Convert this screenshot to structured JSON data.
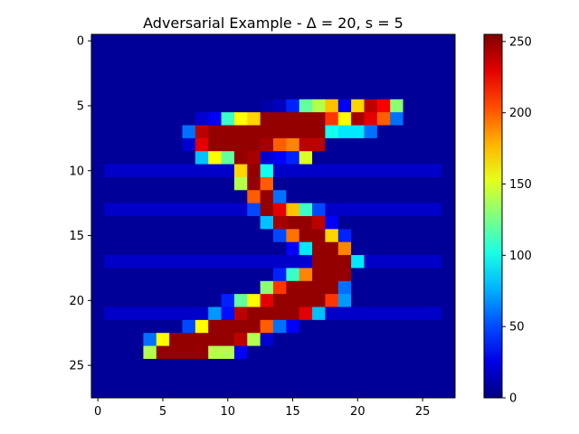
{
  "chart_data": {
    "type": "heatmap",
    "title": "Adversarial Example - Δ = 20, s = 5",
    "xlabel": "",
    "ylabel": "",
    "rows": 28,
    "cols": 28,
    "x_ticks": [
      0,
      5,
      10,
      15,
      20,
      25
    ],
    "y_ticks": [
      0,
      5,
      10,
      15,
      20,
      25
    ],
    "colormap": "jet",
    "vmin": 0,
    "vmax": 255,
    "colorbar_ticks": [
      0,
      50,
      100,
      150,
      200,
      250
    ],
    "background_value": 6,
    "row_noise": [
      {
        "row": 10,
        "cols": [
          1,
          26
        ],
        "value": 18
      },
      {
        "row": 13,
        "cols": [
          1,
          26
        ],
        "value": 18
      },
      {
        "row": 17,
        "cols": [
          1,
          26
        ],
        "value": 18
      },
      {
        "row": 21,
        "cols": [
          1,
          26
        ],
        "value": 18
      }
    ],
    "pixels": [
      [
        5,
        13,
        10
      ],
      [
        5,
        14,
        15
      ],
      [
        5,
        15,
        40
      ],
      [
        5,
        16,
        120
      ],
      [
        5,
        17,
        140
      ],
      [
        5,
        18,
        175
      ],
      [
        5,
        19,
        30
      ],
      [
        5,
        20,
        170
      ],
      [
        5,
        21,
        240
      ],
      [
        5,
        22,
        225
      ],
      [
        5,
        23,
        130
      ],
      [
        6,
        8,
        20
      ],
      [
        6,
        9,
        30
      ],
      [
        6,
        10,
        110
      ],
      [
        6,
        11,
        160
      ],
      [
        6,
        12,
        170
      ],
      [
        6,
        13,
        250
      ],
      [
        6,
        14,
        250
      ],
      [
        6,
        15,
        250
      ],
      [
        6,
        16,
        250
      ],
      [
        6,
        17,
        250
      ],
      [
        6,
        18,
        210
      ],
      [
        6,
        19,
        160
      ],
      [
        6,
        20,
        245
      ],
      [
        6,
        21,
        230
      ],
      [
        6,
        22,
        200
      ],
      [
        6,
        23,
        60
      ],
      [
        7,
        7,
        60
      ],
      [
        7,
        8,
        240
      ],
      [
        7,
        9,
        250
      ],
      [
        7,
        10,
        250
      ],
      [
        7,
        11,
        250
      ],
      [
        7,
        12,
        250
      ],
      [
        7,
        13,
        250
      ],
      [
        7,
        14,
        250
      ],
      [
        7,
        15,
        250
      ],
      [
        7,
        16,
        250
      ],
      [
        7,
        17,
        250
      ],
      [
        7,
        18,
        100
      ],
      [
        7,
        19,
        90
      ],
      [
        7,
        20,
        90
      ],
      [
        7,
        21,
        60
      ],
      [
        8,
        7,
        20
      ],
      [
        8,
        8,
        230
      ],
      [
        8,
        9,
        250
      ],
      [
        8,
        10,
        250
      ],
      [
        8,
        11,
        250
      ],
      [
        8,
        12,
        250
      ],
      [
        8,
        13,
        245
      ],
      [
        8,
        14,
        200
      ],
      [
        8,
        15,
        190
      ],
      [
        8,
        16,
        240
      ],
      [
        8,
        17,
        240
      ],
      [
        9,
        8,
        80
      ],
      [
        9,
        9,
        160
      ],
      [
        9,
        10,
        120
      ],
      [
        9,
        11,
        250
      ],
      [
        9,
        12,
        245
      ],
      [
        9,
        13,
        20
      ],
      [
        9,
        14,
        30
      ],
      [
        9,
        15,
        40
      ],
      [
        9,
        16,
        150
      ],
      [
        10,
        11,
        170
      ],
      [
        10,
        12,
        250
      ],
      [
        10,
        13,
        100
      ],
      [
        11,
        11,
        140
      ],
      [
        11,
        12,
        250
      ],
      [
        11,
        13,
        200
      ],
      [
        12,
        12,
        200
      ],
      [
        12,
        13,
        250
      ],
      [
        12,
        14,
        60
      ],
      [
        13,
        12,
        50
      ],
      [
        13,
        13,
        250
      ],
      [
        13,
        14,
        230
      ],
      [
        13,
        15,
        175
      ],
      [
        13,
        16,
        110
      ],
      [
        13,
        17,
        50
      ],
      [
        14,
        13,
        80
      ],
      [
        14,
        14,
        245
      ],
      [
        14,
        15,
        250
      ],
      [
        14,
        16,
        250
      ],
      [
        14,
        17,
        240
      ],
      [
        14,
        18,
        30
      ],
      [
        15,
        14,
        50
      ],
      [
        15,
        15,
        195
      ],
      [
        15,
        16,
        250
      ],
      [
        15,
        17,
        250
      ],
      [
        15,
        18,
        170
      ],
      [
        15,
        19,
        40
      ],
      [
        16,
        15,
        30
      ],
      [
        16,
        16,
        90
      ],
      [
        16,
        17,
        250
      ],
      [
        16,
        18,
        250
      ],
      [
        16,
        19,
        190
      ],
      [
        17,
        16,
        20
      ],
      [
        17,
        17,
        250
      ],
      [
        17,
        18,
        250
      ],
      [
        17,
        19,
        250
      ],
      [
        17,
        20,
        90
      ],
      [
        18,
        14,
        40
      ],
      [
        18,
        15,
        110
      ],
      [
        18,
        16,
        190
      ],
      [
        18,
        17,
        250
      ],
      [
        18,
        18,
        250
      ],
      [
        18,
        19,
        250
      ],
      [
        19,
        13,
        130
      ],
      [
        19,
        14,
        210
      ],
      [
        19,
        15,
        250
      ],
      [
        19,
        16,
        250
      ],
      [
        19,
        17,
        250
      ],
      [
        19,
        18,
        250
      ],
      [
        19,
        19,
        60
      ],
      [
        20,
        10,
        40
      ],
      [
        20,
        11,
        120
      ],
      [
        20,
        12,
        160
      ],
      [
        20,
        13,
        230
      ],
      [
        20,
        14,
        250
      ],
      [
        20,
        15,
        250
      ],
      [
        20,
        16,
        250
      ],
      [
        20,
        17,
        250
      ],
      [
        20,
        18,
        210
      ],
      [
        20,
        19,
        70
      ],
      [
        21,
        9,
        70
      ],
      [
        21,
        10,
        35
      ],
      [
        21,
        11,
        240
      ],
      [
        21,
        12,
        250
      ],
      [
        21,
        13,
        250
      ],
      [
        21,
        14,
        250
      ],
      [
        21,
        15,
        250
      ],
      [
        21,
        16,
        230
      ],
      [
        21,
        17,
        80
      ],
      [
        22,
        7,
        50
      ],
      [
        22,
        8,
        160
      ],
      [
        22,
        9,
        250
      ],
      [
        22,
        10,
        250
      ],
      [
        22,
        11,
        250
      ],
      [
        22,
        12,
        250
      ],
      [
        22,
        13,
        200
      ],
      [
        22,
        14,
        60
      ],
      [
        22,
        15,
        30
      ],
      [
        23,
        4,
        60
      ],
      [
        23,
        5,
        160
      ],
      [
        23,
        6,
        250
      ],
      [
        23,
        7,
        250
      ],
      [
        23,
        8,
        250
      ],
      [
        23,
        9,
        250
      ],
      [
        23,
        10,
        250
      ],
      [
        23,
        11,
        240
      ],
      [
        23,
        12,
        140
      ],
      [
        23,
        13,
        20
      ],
      [
        24,
        4,
        140
      ],
      [
        24,
        5,
        250
      ],
      [
        24,
        6,
        250
      ],
      [
        24,
        7,
        250
      ],
      [
        24,
        8,
        250
      ],
      [
        24,
        9,
        140
      ],
      [
        24,
        10,
        140
      ],
      [
        24,
        11,
        30
      ]
    ]
  }
}
